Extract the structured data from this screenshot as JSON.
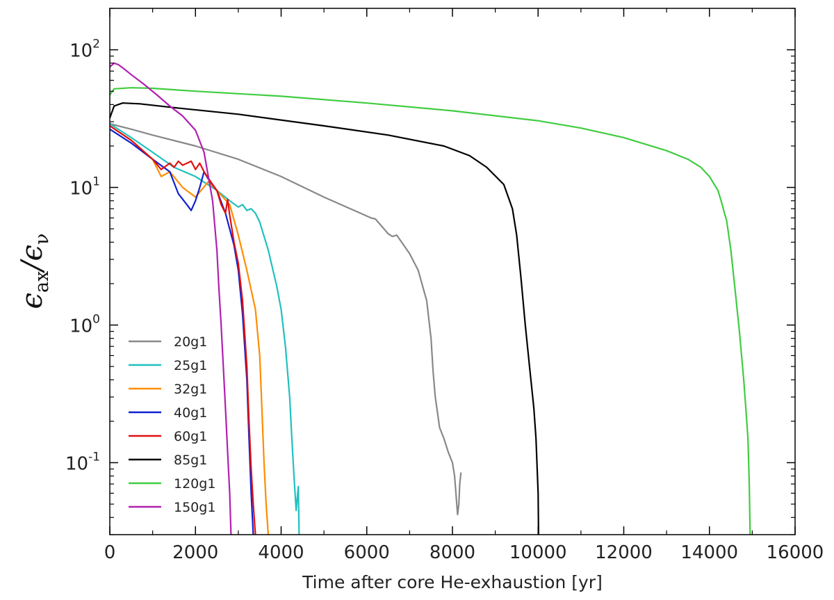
{
  "chart_data": {
    "type": "line",
    "title": "",
    "xlabel": "Time after core He-exhaustion [yr]",
    "ylabel": {
      "main": "ϵ",
      "num_sub": "ax",
      "slash": "/",
      "den_sub": "ν"
    },
    "xlim": [
      0,
      16000
    ],
    "ylim": [
      0.03,
      200
    ],
    "yscale": "log",
    "xticks": [
      0,
      2000,
      4000,
      6000,
      8000,
      10000,
      12000,
      14000,
      16000
    ],
    "xtick_labels": [
      "0",
      "2000",
      "4000",
      "6000",
      "8000",
      "10000",
      "12000",
      "14000",
      "16000"
    ],
    "yticks": [
      0.1,
      1,
      10,
      100
    ],
    "ytick_labels": [
      {
        "base": "10",
        "exp": "-1"
      },
      {
        "base": "10",
        "exp": "0"
      },
      {
        "base": "10",
        "exp": "1"
      },
      {
        "base": "10",
        "exp": "2"
      }
    ],
    "legend_position": "lower-left",
    "series": [
      {
        "name": "20g1",
        "color": "#888888",
        "x": [
          0,
          500,
          1000,
          2000,
          3000,
          4000,
          5000,
          6000,
          6100,
          6200,
          6500,
          6600,
          6700,
          7000,
          7200,
          7400,
          7500,
          7550,
          7600,
          7700,
          7800,
          7900,
          8000,
          8050,
          8100,
          8120,
          8150,
          8170,
          8200
        ],
        "y": [
          29,
          26.5,
          24,
          20,
          16,
          12,
          8.5,
          6.2,
          6.0,
          5.9,
          4.6,
          4.4,
          4.5,
          3.3,
          2.5,
          1.5,
          0.8,
          0.45,
          0.3,
          0.18,
          0.15,
          0.12,
          0.1,
          0.08,
          0.05,
          0.042,
          0.05,
          0.07,
          0.085
        ]
      },
      {
        "name": "25g1",
        "color": "#20c0c0",
        "x": [
          0,
          500,
          1000,
          1500,
          2000,
          2500,
          2800,
          3000,
          3100,
          3200,
          3300,
          3400,
          3500,
          3700,
          3900,
          4000,
          4100,
          4200,
          4250,
          4300,
          4350,
          4400,
          4420
        ],
        "y": [
          29,
          23,
          18,
          14,
          12,
          9.5,
          8,
          7.2,
          7.5,
          6.8,
          7.0,
          6.5,
          5.6,
          3.5,
          1.9,
          1.3,
          0.7,
          0.3,
          0.15,
          0.08,
          0.045,
          0.067,
          0.03
        ]
      },
      {
        "name": "32g1",
        "color": "#ff8c00",
        "x": [
          0,
          500,
          1000,
          1200,
          1400,
          1700,
          2000,
          2300,
          2500,
          2800,
          3000,
          3200,
          3400,
          3500,
          3550,
          3600,
          3650,
          3700
        ],
        "y": [
          28,
          22,
          16,
          12,
          13,
          10,
          8.5,
          11,
          9.5,
          7.5,
          4.5,
          2.5,
          1.3,
          0.6,
          0.25,
          0.1,
          0.05,
          0.03
        ]
      },
      {
        "name": "40g1",
        "color": "#1020d0",
        "x": [
          0,
          500,
          1000,
          1400,
          1600,
          1800,
          1900,
          2000,
          2100,
          2200,
          2300,
          2500,
          2700,
          2900,
          3000,
          3100,
          3200,
          3250,
          3300,
          3350
        ],
        "y": [
          26.5,
          21,
          16,
          13,
          9,
          7.5,
          6.8,
          8.0,
          10,
          13,
          11.5,
          9.5,
          6.5,
          3.8,
          2.5,
          1.2,
          0.4,
          0.15,
          0.06,
          0.03
        ]
      },
      {
        "name": "60g1",
        "color": "#e01010",
        "x": [
          0,
          500,
          1000,
          1200,
          1400,
          1500,
          1600,
          1700,
          1900,
          2000,
          2100,
          2200,
          2400,
          2500,
          2600,
          2700,
          2750,
          2800,
          2900,
          3000,
          3100,
          3200,
          3250,
          3300,
          3350,
          3400
        ],
        "y": [
          28,
          22,
          16,
          13.5,
          15,
          14,
          15.5,
          14.5,
          15.5,
          13.5,
          15.0,
          13,
          10.5,
          9.5,
          7.5,
          6.5,
          8.2,
          6.3,
          4.0,
          2.8,
          1.5,
          0.5,
          0.2,
          0.09,
          0.05,
          0.03
        ]
      },
      {
        "name": "85g1",
        "color": "#000000",
        "x": [
          0,
          100,
          300,
          700,
          1500,
          3000,
          5000,
          6500,
          7800,
          8400,
          8800,
          9200,
          9400,
          9500,
          9600,
          9700,
          9800,
          9900,
          9950,
          10000,
          10010
        ],
        "y": [
          32,
          39,
          41,
          40.5,
          38,
          34,
          28,
          24,
          20,
          17,
          14,
          10.5,
          7,
          4.5,
          2.2,
          1.0,
          0.5,
          0.25,
          0.15,
          0.06,
          0.03
        ]
      },
      {
        "name": "120g1",
        "color": "#40cc40",
        "x": [
          0,
          100,
          500,
          1000,
          2000,
          4000,
          6000,
          8000,
          10000,
          11000,
          12000,
          13000,
          13500,
          13800,
          14000,
          14200,
          14300,
          14350,
          14400,
          14500,
          14600,
          14700,
          14800,
          14850,
          14900,
          14930,
          14950
        ],
        "y": [
          47,
          52,
          53,
          52.5,
          50,
          46,
          41,
          36,
          30.5,
          27,
          23,
          18.5,
          16,
          14,
          12,
          9.5,
          7.5,
          6.5,
          5.8,
          3.5,
          1.8,
          0.9,
          0.4,
          0.25,
          0.15,
          0.07,
          0.03
        ]
      },
      {
        "name": "150g1",
        "color": "#b020b0",
        "x": [
          0,
          100,
          200,
          300,
          500,
          800,
          1100,
          1400,
          1700,
          2000,
          2200,
          2400,
          2500,
          2550,
          2600,
          2650,
          2700,
          2750,
          2800,
          2830
        ],
        "y": [
          75,
          80,
          78,
          74,
          66,
          56,
          47,
          39,
          33,
          26,
          18,
          8,
          3.5,
          1.8,
          1.0,
          0.5,
          0.25,
          0.12,
          0.06,
          0.03
        ]
      }
    ]
  }
}
